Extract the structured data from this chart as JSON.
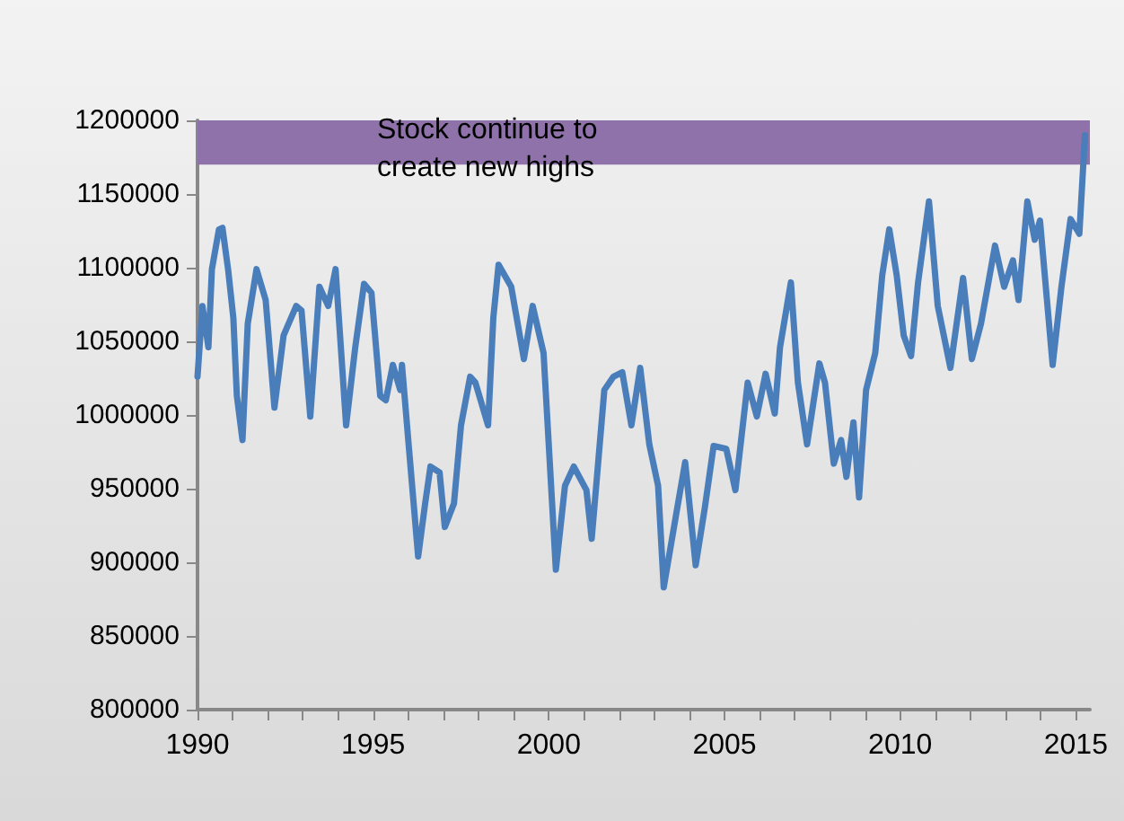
{
  "chart_data": {
    "type": "line",
    "x": [
      1990.0,
      1990.14,
      1990.31,
      1990.41,
      1990.61,
      1990.71,
      1990.87,
      1991.02,
      1991.12,
      1991.28,
      1991.43,
      1991.68,
      1991.94,
      1992.19,
      1992.45,
      1992.81,
      1992.96,
      1993.21,
      1993.47,
      1993.72,
      1993.93,
      1994.23,
      1994.49,
      1994.74,
      1994.95,
      1995.2,
      1995.36,
      1995.56,
      1995.77,
      1995.82,
      1996.02,
      1996.28,
      1996.48,
      1996.63,
      1996.89,
      1997.04,
      1997.3,
      1997.5,
      1997.76,
      1997.91,
      1998.27,
      1998.42,
      1998.57,
      1998.93,
      1999.29,
      1999.54,
      1999.85,
      2000.2,
      2000.46,
      2000.71,
      2001.07,
      2001.22,
      2001.58,
      2001.84,
      2002.09,
      2002.35,
      2002.6,
      2002.86,
      2003.11,
      2003.27,
      2003.62,
      2003.88,
      2004.18,
      2004.44,
      2004.69,
      2005.05,
      2005.31,
      2005.66,
      2005.92,
      2006.17,
      2006.43,
      2006.58,
      2006.89,
      2007.09,
      2007.35,
      2007.7,
      2007.86,
      2008.11,
      2008.32,
      2008.47,
      2008.67,
      2008.83,
      2009.03,
      2009.29,
      2009.49,
      2009.69,
      2009.9,
      2010.1,
      2010.31,
      2010.51,
      2010.82,
      2011.07,
      2011.43,
      2011.79,
      2012.04,
      2012.3,
      2012.7,
      2012.96,
      2013.21,
      2013.37,
      2013.62,
      2013.83,
      2013.98,
      2014.34,
      2014.59,
      2014.85,
      2015.1,
      2015.26
    ],
    "series": [
      {
        "color": "#4a7ebb",
        "values": [
          1026000,
          1074000,
          1046000,
          1099000,
          1126000,
          1127000,
          1099000,
          1066000,
          1013000,
          983000,
          1062000,
          1099000,
          1078000,
          1005000,
          1054000,
          1074000,
          1071000,
          999000,
          1087000,
          1074000,
          1099000,
          993000,
          1046000,
          1089000,
          1083000,
          1013000,
          1010000,
          1034000,
          1017000,
          1034000,
          977000,
          904000,
          940000,
          965000,
          961000,
          924000,
          940000,
          993000,
          1026000,
          1022000,
          993000,
          1066000,
          1102000,
          1087000,
          1038000,
          1074000,
          1042000,
          895000,
          952000,
          965000,
          949000,
          916000,
          1017000,
          1026000,
          1029000,
          993000,
          1032000,
          980000,
          952000,
          883000,
          932000,
          968000,
          898000,
          937000,
          979000,
          977000,
          949000,
          1022000,
          999000,
          1028000,
          1001000,
          1046000,
          1090000,
          1022000,
          980000,
          1035000,
          1022000,
          967000,
          983000,
          958000,
          995000,
          944000,
          1017000,
          1042000,
          1095000,
          1126000,
          1095000,
          1054000,
          1040000,
          1090000,
          1145000,
          1074000,
          1032000,
          1093000,
          1038000,
          1062000,
          1115000,
          1087000,
          1105000,
          1078000,
          1145000,
          1119000,
          1132000,
          1034000,
          1087000,
          1133000,
          1123000,
          1190000
        ]
      }
    ],
    "xlim": [
      1990,
      2015.4
    ],
    "xticks": [
      1990,
      {
        "value": 1991,
        "label": null
      },
      {
        "value": 1992,
        "label": null
      },
      {
        "value": 1993,
        "label": null
      },
      {
        "value": 1994,
        "label": null
      },
      1995,
      {
        "value": 1996,
        "label": null
      },
      {
        "value": 1997,
        "label": null
      },
      {
        "value": 1998,
        "label": null
      },
      {
        "value": 1999,
        "label": null
      },
      2000,
      {
        "value": 2001,
        "label": null
      },
      {
        "value": 2002,
        "label": null
      },
      {
        "value": 2003,
        "label": null
      },
      {
        "value": 2004,
        "label": null
      },
      2005,
      {
        "value": 2006,
        "label": null
      },
      {
        "value": 2007,
        "label": null
      },
      {
        "value": 2008,
        "label": null
      },
      {
        "value": 2009,
        "label": null
      },
      2010,
      {
        "value": 2011,
        "label": null
      },
      {
        "value": 2012,
        "label": null
      },
      {
        "value": 2013,
        "label": null
      },
      {
        "value": 2014,
        "label": null
      },
      2015
    ],
    "ylim": [
      800000,
      1200000
    ],
    "yticks": [
      800000,
      850000,
      900000,
      950000,
      1000000,
      1050000,
      1100000,
      1150000,
      1200000
    ],
    "grid": false,
    "marker": "none",
    "line_style": "solid",
    "bands": [
      {
        "axis": "y",
        "from": 1170000,
        "to": 1200000,
        "color": "#8e72a9"
      }
    ],
    "annotations": [
      "Stock continue to create new highs"
    ]
  }
}
